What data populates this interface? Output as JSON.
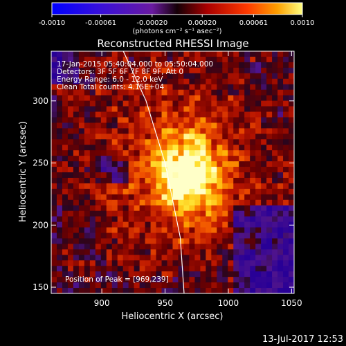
{
  "chart_data": {
    "type": "heatmap",
    "title": "Reconstructed RHESSI Image",
    "xlabel": "Heliocentric X (arcsec)",
    "ylabel": "Heliocentric Y (arcsec)",
    "xlim": [
      860,
      1052
    ],
    "ylim": [
      145,
      340
    ],
    "x_ticks": [
      "900",
      "950",
      "1000",
      "1050"
    ],
    "y_ticks": [
      "150",
      "200",
      "250",
      "300"
    ],
    "colorbar": {
      "ticks": [
        "-0.0010",
        "-0.00061",
        "-0.00020",
        "0.00020",
        "0.00061",
        "0.0010"
      ],
      "unit_label": "(photons cm⁻² s⁻¹ asec⁻²)",
      "range": [
        -0.001,
        0.001
      ]
    },
    "info": {
      "time": "17-Jan-2015 05:40:04.000 to 05:50:04.000",
      "detectors": "Detectors: 3F 5F 6F 7F 8F 9F, Att 0",
      "energy": "Energy Range: 6.0 - 12.0 keV",
      "clean": "Clean     Total counts: 4.15E+04",
      "peak": "Position of Peak = [969,239]"
    },
    "peak": [
      969,
      239
    ],
    "limb": {
      "x": [
        917,
        935,
        950,
        962,
        965
      ],
      "y": [
        340,
        300,
        250,
        190,
        145
      ]
    },
    "timestamp": "13-Jul-2017 12:53"
  }
}
